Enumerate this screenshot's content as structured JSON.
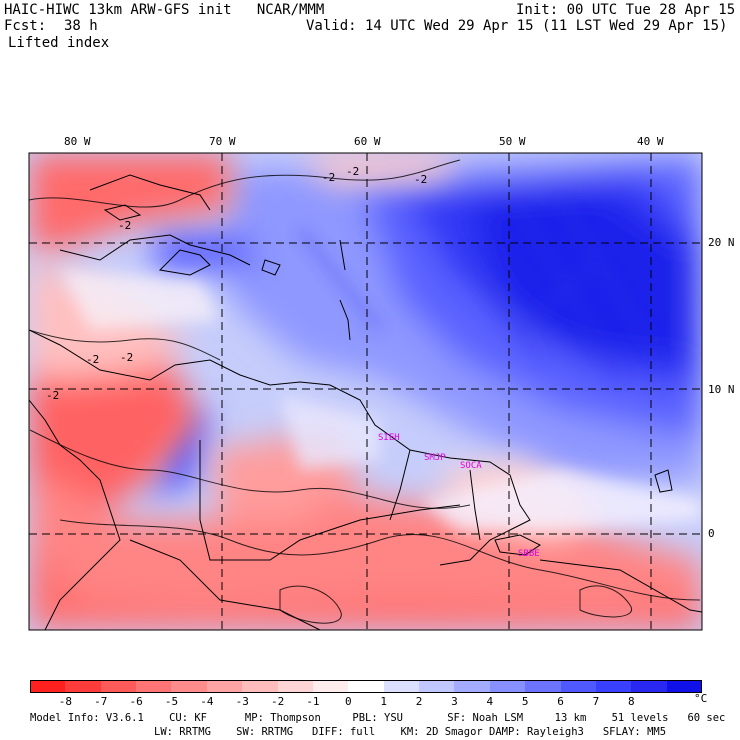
{
  "header": {
    "model_line": "HAIC-HIWC 13km ARW-GFS init   NCAR/MMM",
    "init_line": "Init: 00 UTC Tue 28 Apr 15",
    "fcst_label": "Fcst:",
    "fcst_value": "38 h",
    "valid_line": "Valid: 14 UTC Wed 29 Apr 15 (11 LST Wed 29 Apr 15)",
    "field_name": "Lifted index"
  },
  "map": {
    "lon_labels": [
      "80 W",
      "70 W",
      "60 W",
      "50 W",
      "40 W"
    ],
    "lat_labels": [
      "20 N",
      "10 N",
      "0"
    ],
    "contour_labels": [
      "-2",
      "-2",
      "-2",
      "-2",
      "-2",
      "-2",
      "-2"
    ],
    "stations": [
      "SIEH",
      "SMJP",
      "SOCA",
      "SBBE"
    ],
    "station_color": "#e000e0"
  },
  "colorbar": {
    "labels": [
      "-8",
      "-7",
      "-6",
      "-5",
      "-4",
      "-3",
      "-2",
      "-1",
      "0",
      "1",
      "2",
      "3",
      "4",
      "5",
      "6",
      "7",
      "8"
    ],
    "unit": "°C",
    "colors": [
      "#ff2020",
      "#ff3c3c",
      "#ff5a5a",
      "#ff7474",
      "#ff8c8c",
      "#ffa4a4",
      "#ffbcbc",
      "#ffd4d4",
      "#ffecec",
      "#ffffff",
      "#dce0ff",
      "#c0c8ff",
      "#a4acff",
      "#8890ff",
      "#6c74ff",
      "#5058ff",
      "#3a40ff",
      "#2828f0",
      "#1010e8"
    ]
  },
  "footer": {
    "line1": "Model Info: V3.6.1    CU: KF      MP: Thompson     PBL: YSU       SF: Noah LSM     13 km    51 levels   60 sec",
    "line2": "LW: RRTMG    SW: RRTMG   DIFF: full    KM: 2D Smagor DAMP: Rayleigh3   SFLAY: MM5"
  }
}
